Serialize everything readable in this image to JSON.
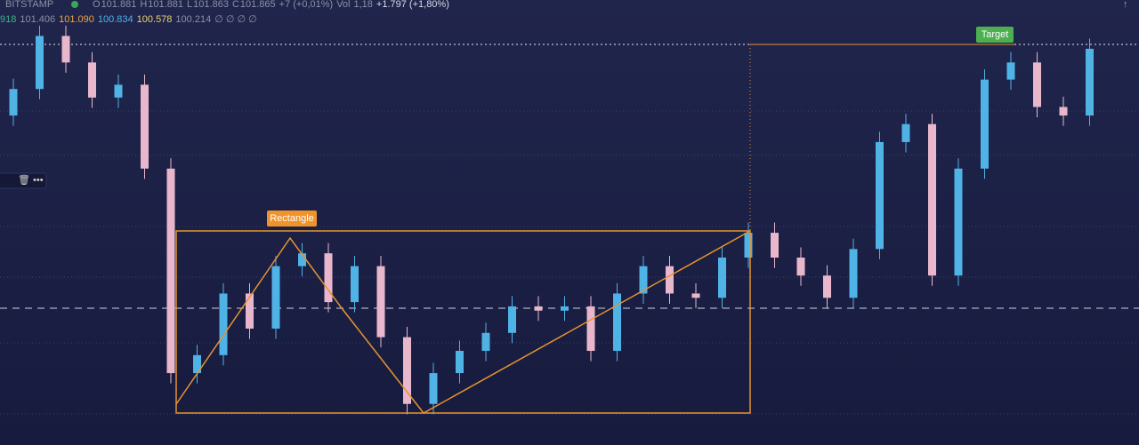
{
  "header": {
    "exchange": "BITSTAMP",
    "ohlc": [
      {
        "key": "O",
        "value": "101.881"
      },
      {
        "key": "H",
        "value": "101.881"
      },
      {
        "key": "L",
        "value": "101.863"
      },
      {
        "key": "C",
        "value": "101.865"
      }
    ],
    "change": "+7 (+0,01%)",
    "vol_key": "Vol",
    "vol": "1,18",
    "day_change": "+1.797 (+1,80%)",
    "indicators": [
      "918",
      "101.406",
      "101.090",
      "100.834",
      "100.578",
      "100.214",
      "∅ ∅ ∅ ∅"
    ]
  },
  "annotations": {
    "rectangle": "Rectangle",
    "target": "Target"
  },
  "chart_data": {
    "type": "candlestick",
    "ylim": [
      97.2,
      102.4
    ],
    "up_color": "#4fb3e6",
    "down_color": "#e9b7cc",
    "open": [
      101.05,
      101.36,
      101.98,
      101.67,
      101.26,
      101.41,
      100.43,
      98.04,
      98.25,
      98.97,
      98.56,
      99.29,
      99.44,
      98.87,
      99.29,
      98.46,
      97.68,
      98.04,
      98.3,
      98.51,
      98.82,
      98.77,
      98.82,
      98.3,
      98.97,
      99.29,
      98.97,
      98.92,
      99.39,
      99.68,
      99.39,
      99.18,
      98.92,
      99.49,
      100.74,
      100.95,
      99.18,
      100.43,
      101.47,
      101.67,
      101.15,
      101.05
    ],
    "high": [
      101.48,
      102.1,
      102.1,
      101.79,
      101.53,
      101.53,
      100.55,
      98.37,
      99.09,
      99.09,
      99.41,
      99.56,
      99.56,
      99.41,
      99.41,
      98.58,
      98.16,
      98.42,
      98.63,
      98.94,
      98.94,
      98.94,
      98.94,
      99.09,
      99.41,
      99.41,
      99.09,
      99.51,
      99.8,
      99.8,
      99.51,
      99.3,
      99.61,
      100.86,
      101.07,
      101.07,
      100.55,
      101.59,
      101.79,
      101.79,
      101.27,
      101.95
    ],
    "low": [
      100.93,
      101.24,
      101.55,
      101.14,
      101.14,
      100.31,
      97.92,
      97.92,
      98.13,
      98.44,
      98.44,
      99.17,
      98.75,
      98.75,
      98.34,
      97.56,
      97.56,
      97.92,
      98.18,
      98.39,
      98.65,
      98.65,
      98.18,
      98.18,
      98.85,
      98.85,
      98.8,
      98.8,
      99.27,
      99.27,
      99.06,
      98.8,
      98.8,
      99.37,
      100.62,
      99.06,
      99.06,
      100.31,
      101.35,
      101.03,
      100.93,
      100.93
    ],
    "close": [
      101.36,
      101.98,
      101.67,
      101.26,
      101.41,
      100.43,
      98.04,
      98.25,
      98.97,
      98.56,
      99.29,
      99.44,
      98.87,
      99.29,
      98.46,
      97.68,
      98.04,
      98.3,
      98.51,
      98.82,
      98.77,
      98.82,
      98.3,
      98.97,
      99.29,
      98.97,
      98.92,
      99.39,
      99.68,
      99.39,
      99.18,
      98.92,
      99.49,
      100.74,
      100.95,
      99.18,
      100.43,
      101.47,
      101.67,
      101.15,
      101.05,
      101.83
    ]
  }
}
